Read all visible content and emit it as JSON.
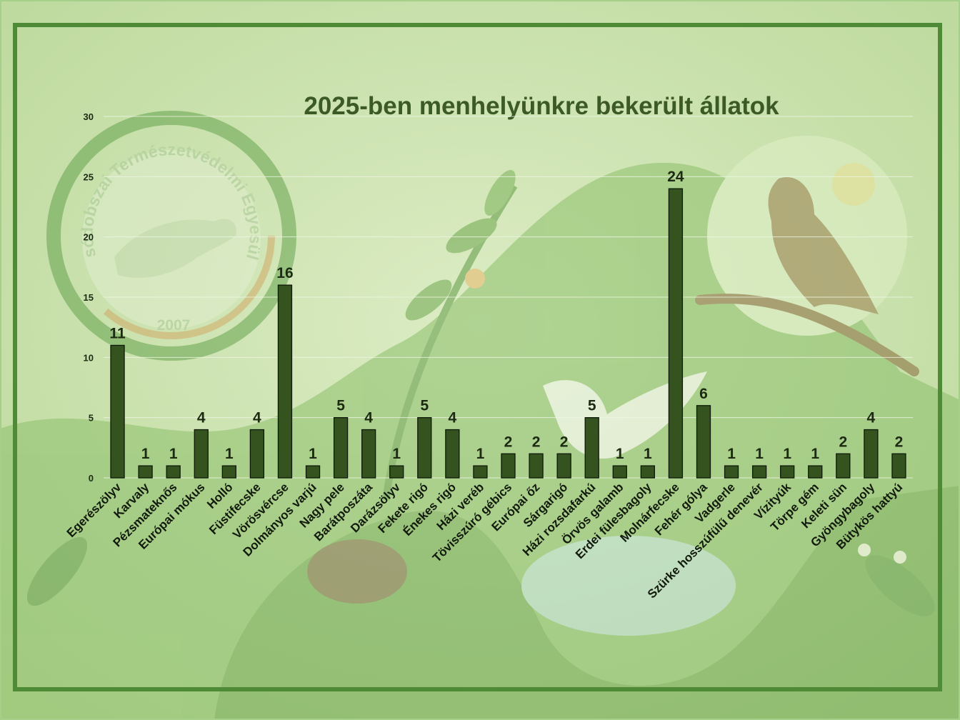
{
  "colors": {
    "page_background": "#cfe6b4",
    "frame": "#4f8a36",
    "bar": "#34531f",
    "title": "#3c5a26"
  },
  "background_logo": {
    "name_arc": "Alsódobszai Természetvédelmi Egyesület",
    "year": "2007"
  },
  "chart_data": {
    "type": "bar",
    "title": "2025-ben menhelyünkre bekerült állatok",
    "xlabel": "",
    "ylabel": "",
    "ylim": [
      0,
      30
    ],
    "yticks": [
      0,
      5,
      10,
      15,
      20,
      25,
      30
    ],
    "grid": true,
    "data_labels": true,
    "categories": [
      "Egerészölyv",
      "Karvaly",
      "Pézsmateknős",
      "Európai mókus",
      "Holló",
      "Füstifecske",
      "Vörösvércse",
      "Dolmányos varjú",
      "Nagy pele",
      "Barátposzáta",
      "Darázsölyv",
      "Fekete rigó",
      "Énekes rigó",
      "Házi veréb",
      "Tövisszúró gébics",
      "Európai őz",
      "Sárgarigó",
      "Házi rozsdafarkú",
      "Örvös galamb",
      "Erdei fülesbagoly",
      "Molnárfecske",
      "Fehér gólya",
      "Vadgerle",
      "Szürke hosszúfülű denevér",
      "Vízityúk",
      "Törpe gém",
      "Keleti sün",
      "Gyöngybagoly",
      "Bütykös hattyú"
    ],
    "values": [
      11,
      1,
      1,
      4,
      1,
      4,
      16,
      1,
      5,
      4,
      1,
      5,
      4,
      1,
      2,
      2,
      2,
      5,
      1,
      1,
      24,
      6,
      1,
      1,
      1,
      1,
      2,
      4,
      2
    ]
  }
}
